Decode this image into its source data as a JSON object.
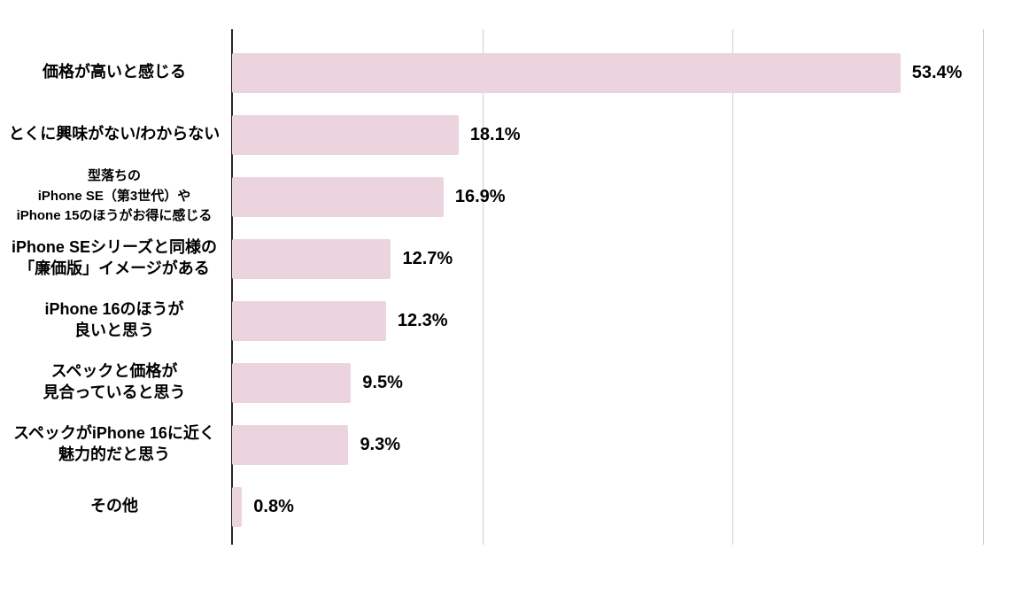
{
  "chart_data": {
    "type": "bar",
    "orientation": "horizontal",
    "title": "",
    "xlabel": "",
    "ylabel": "",
    "categories": [
      [
        "価格が高いと感じる"
      ],
      [
        "とくに興味がない/わからない"
      ],
      [
        "型落ちの",
        "iPhone SE（第3世代）や",
        "iPhone 15のほうがお得に感じる"
      ],
      [
        "iPhone SEシリーズと同様の",
        "「廉価版」イメージがある"
      ],
      [
        "iPhone 16のほうが",
        "良いと思う"
      ],
      [
        "スペックと価格が",
        "見合っていると思う"
      ],
      [
        "スペックがiPhone 16に近く",
        "魅力的だと思う"
      ],
      [
        "その他"
      ]
    ],
    "values": [
      53.4,
      18.1,
      16.9,
      12.7,
      12.3,
      9.5,
      9.3,
      0.8
    ],
    "value_labels": [
      "53.4%",
      "18.1%",
      "16.9%",
      "12.7%",
      "12.3%",
      "9.5%",
      "9.3%",
      "0.8%"
    ],
    "xlim": [
      0,
      62.5
    ],
    "gridline_values": [
      0,
      20,
      40,
      60
    ],
    "grid": true,
    "legend": false,
    "colors": {
      "bar": "#ecd4df",
      "gridline": "#cccccc",
      "axis": "#262626",
      "text": "#000000",
      "background": "#ffffff"
    }
  }
}
